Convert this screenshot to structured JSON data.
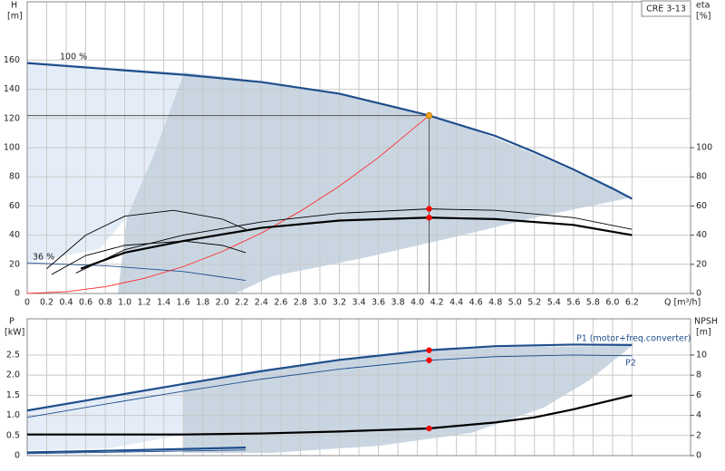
{
  "chart_data": [
    {
      "type": "line",
      "title": "CRE 3-13",
      "ylabel": "H",
      "yunit": "[m]",
      "y2label": "eta",
      "y2unit": "[%]",
      "xlabel": "Q [m³/h]",
      "annotations": [
        "100 %",
        "36 %"
      ],
      "xlim": [
        0,
        6.8
      ],
      "xticks": [
        0,
        0.2,
        0.4,
        0.6,
        0.8,
        {
          "value": 1,
          "label": "1.0"
        },
        1.2,
        1.4,
        1.6,
        1.8,
        {
          "value": 2,
          "label": "2.0"
        },
        2.2,
        2.4,
        2.6,
        2.8,
        {
          "value": 3,
          "label": "3.0"
        },
        3.2,
        3.4,
        3.6,
        3.8,
        {
          "value": 4,
          "label": "4.0"
        },
        4.2,
        4.4,
        4.6,
        4.8,
        {
          "value": 5,
          "label": "5.0"
        },
        5.2,
        5.4,
        5.6,
        5.8,
        {
          "value": 6,
          "label": "6.0"
        },
        6.2
      ],
      "ylim": [
        0,
        200
      ],
      "yticks": [
        0,
        20,
        40,
        60,
        80,
        100,
        120,
        140,
        160
      ],
      "y2lim": [
        0,
        200
      ],
      "y2ticks": [
        0,
        20,
        40,
        60,
        80,
        100
      ],
      "grid": true,
      "series": [
        {
          "color": "#1f4e8c",
          "style": "thick",
          "x": [
            0,
            0.8,
            1.6,
            2.4,
            3.2,
            4.0,
            4.12,
            4.8,
            5.2,
            5.6,
            6.0,
            6.2
          ],
          "values": [
            158,
            154,
            150,
            145,
            137,
            124,
            122,
            108,
            97,
            85,
            72,
            65
          ]
        },
        {
          "color": "#1f4e8c",
          "style": "thin",
          "x": [
            0,
            0.8,
            1.6,
            2.24
          ],
          "values": [
            21,
            19,
            15,
            9
          ]
        },
        {
          "color": "#ff2a2a",
          "style": "thin",
          "x": [
            0,
            0.4,
            0.8,
            1.2,
            1.6,
            2.0,
            2.4,
            2.8,
            3.2,
            3.6,
            4.12
          ],
          "values": [
            0,
            1.2,
            4.6,
            10.4,
            18.4,
            28.8,
            41.4,
            56.4,
            73.6,
            93.2,
            122
          ]
        },
        {
          "color": "#000000",
          "style": "thin",
          "axis": "y2",
          "x": [
            0.5,
            1.0,
            1.6,
            2.4,
            3.2,
            4.12,
            4.8,
            5.6,
            6.2
          ],
          "values": [
            14,
            30,
            40,
            49,
            55,
            58,
            57,
            52,
            44
          ]
        },
        {
          "color": "#000000",
          "style": "thick",
          "axis": "y2",
          "x": [
            0.55,
            1.0,
            1.6,
            2.4,
            3.2,
            4.12,
            4.8,
            5.6,
            6.2
          ],
          "values": [
            17,
            28,
            36,
            45,
            50,
            52,
            51,
            47,
            40
          ]
        },
        {
          "color": "#000000",
          "style": "thin",
          "axis": "y2",
          "x": [
            0.2,
            0.6,
            1.0,
            1.5,
            2.0,
            2.24
          ],
          "values": [
            17,
            40,
            53,
            57,
            51,
            44
          ]
        },
        {
          "color": "#000000",
          "style": "thin",
          "axis": "y2",
          "x": [
            0.25,
            0.6,
            1.0,
            1.6,
            2.0,
            2.24
          ],
          "values": [
            13,
            26,
            33,
            36,
            33,
            28
          ]
        }
      ],
      "markers": [
        {
          "color": "#f5a623",
          "x": 4.12,
          "y": 122
        },
        {
          "color": "#ff0000",
          "axis": "y2",
          "x": 4.12,
          "y": 58
        },
        {
          "color": "#ff0000",
          "axis": "y2",
          "x": 4.12,
          "y": 52
        }
      ]
    },
    {
      "type": "line",
      "ylabel": "P",
      "yunit": "[kW]",
      "y2label": "NPSH",
      "y2unit": "[m]",
      "xlim": [
        0,
        6.8
      ],
      "ylim": [
        0,
        3.4
      ],
      "yticks": [
        0,
        0.5,
        {
          "value": 1,
          "label": "1.0"
        },
        1.5,
        {
          "value": 2,
          "label": "2.0"
        },
        2.5
      ],
      "y2lim": [
        0,
        13.6
      ],
      "y2ticks": [
        0,
        2,
        4,
        6,
        8,
        10
      ],
      "grid": true,
      "series": [
        {
          "name": "P1 (motor+freq.converter)",
          "color": "#1f4e8c",
          "style": "thick",
          "x": [
            0,
            0.8,
            1.6,
            2.4,
            3.2,
            4.12,
            4.8,
            5.6,
            6.2
          ],
          "values": [
            1.12,
            1.45,
            1.78,
            2.1,
            2.38,
            2.62,
            2.72,
            2.76,
            2.75
          ]
        },
        {
          "name": "P2",
          "color": "#1f4e8c",
          "style": "thin",
          "x": [
            0,
            0.8,
            1.6,
            2.4,
            3.2,
            4.12,
            4.8,
            5.6,
            6.2
          ],
          "values": [
            0.95,
            1.28,
            1.6,
            1.9,
            2.15,
            2.37,
            2.46,
            2.5,
            2.48
          ]
        },
        {
          "color": "#1f4e8c",
          "style": "thick",
          "x": [
            0,
            1.0,
            2.24
          ],
          "values": [
            0.08,
            0.13,
            0.2
          ]
        },
        {
          "color": "#1f4e8c",
          "style": "thin",
          "x": [
            0,
            1.0,
            2.24
          ],
          "values": [
            0.05,
            0.09,
            0.14
          ]
        },
        {
          "color": "#000000",
          "style": "thick",
          "axis": "y2",
          "x": [
            0,
            1.6,
            2.4,
            3.2,
            4.12,
            4.8,
            5.2,
            5.6,
            6.2
          ],
          "values": [
            2.1,
            2.1,
            2.2,
            2.4,
            2.7,
            3.3,
            3.8,
            4.6,
            6.0
          ]
        }
      ],
      "markers": [
        {
          "color": "#ff0000",
          "x": 4.12,
          "y": 2.62
        },
        {
          "color": "#ff0000",
          "x": 4.12,
          "y": 2.37
        },
        {
          "color": "#ff0000",
          "axis": "y2",
          "x": 4.12,
          "y": 2.7
        }
      ]
    }
  ]
}
